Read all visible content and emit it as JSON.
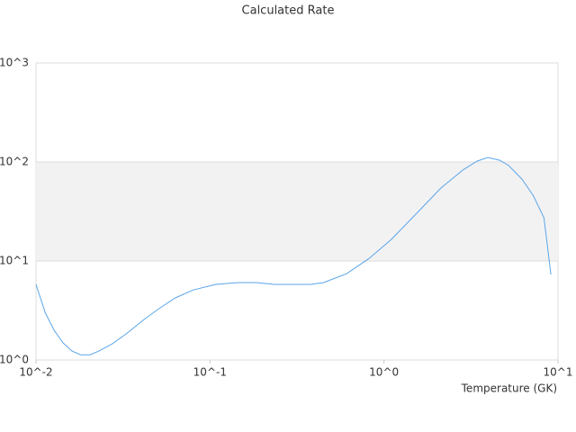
{
  "chart_data": {
    "type": "line",
    "title": "Calculated Rate",
    "x_label": "Temperature (GK)",
    "x_log": true,
    "y_log": true,
    "grid_bands": true,
    "xlim": [
      0.01,
      10
    ],
    "ylim": [
      1,
      1000
    ],
    "xticks": [
      {
        "value": 0.01,
        "label": "10^-2"
      },
      {
        "value": 0.1,
        "label": "10^-1"
      },
      {
        "value": 1,
        "label": "10^0"
      },
      {
        "value": 10,
        "label": "10^1"
      }
    ],
    "yticks": [
      {
        "value": 1,
        "label": "10^0"
      },
      {
        "value": 10,
        "label": "10^1"
      },
      {
        "value": 100,
        "label": "10^2"
      },
      {
        "value": 1000,
        "label": "10^3"
      }
    ],
    "series": [
      {
        "color": "#5aa5e8",
        "x": [
          0.01,
          0.0113,
          0.0127,
          0.0143,
          0.0161,
          0.0181,
          0.0204,
          0.023,
          0.0275,
          0.0329,
          0.0417,
          0.05,
          0.0632,
          0.08,
          0.108,
          0.145,
          0.185,
          0.234,
          0.378,
          0.45,
          0.61,
          0.82,
          1.1,
          1.49,
          2.12,
          2.84,
          3.42,
          3.94,
          4.63,
          5.21,
          6.21,
          7.2,
          8.3,
          9.1
        ],
        "values": [
          5.8,
          3.0,
          2.0,
          1.49,
          1.23,
          1.13,
          1.13,
          1.23,
          1.46,
          1.83,
          2.56,
          3.23,
          4.24,
          5.1,
          5.8,
          6.05,
          6.05,
          5.8,
          5.8,
          6.05,
          7.45,
          10.6,
          16.5,
          28.5,
          54.5,
          83,
          102,
          111,
          104,
          92,
          67,
          46,
          27.3,
          7.3
        ]
      }
    ]
  }
}
